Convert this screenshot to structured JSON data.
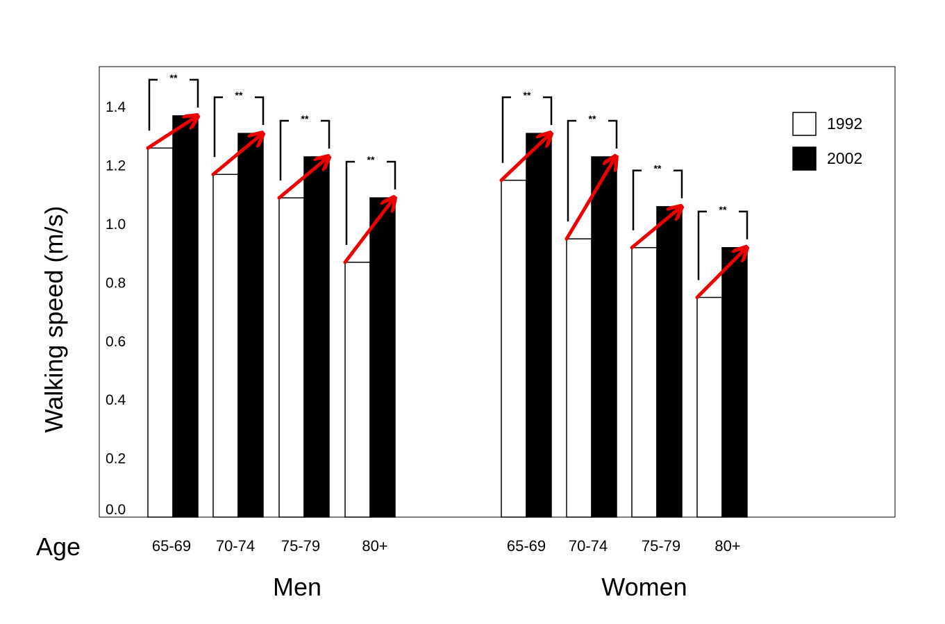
{
  "chart_data": {
    "type": "bar",
    "ylabel": "Walking speed (m/s)",
    "xlabel": "Age",
    "ylim": [
      0,
      1.55
    ],
    "yticks": [
      "0.0",
      "0.2",
      "0.4",
      "0.6",
      "0.8",
      "1.0",
      "1.2",
      "1.4"
    ],
    "groups": [
      {
        "label": "Men",
        "categories": [
          "65-69",
          "70-74",
          "75-79",
          "80+"
        ]
      },
      {
        "label": "Women",
        "categories": [
          "65-69",
          "70-74",
          "75-79",
          "80+"
        ]
      }
    ],
    "series": [
      {
        "name": "1992",
        "color": "#ffffff",
        "values": [
          1.26,
          1.17,
          1.09,
          0.87,
          1.15,
          0.95,
          0.92,
          0.75
        ]
      },
      {
        "name": "2002",
        "color": "#000000",
        "values": [
          1.37,
          1.31,
          1.23,
          1.09,
          1.31,
          1.23,
          1.06,
          0.92
        ]
      }
    ],
    "significance": [
      "**",
      "**",
      "**",
      "**",
      "**",
      "**",
      "**",
      "**"
    ],
    "arrow_color": "#ee0000",
    "legend_position": "top-right",
    "grid": false
  }
}
